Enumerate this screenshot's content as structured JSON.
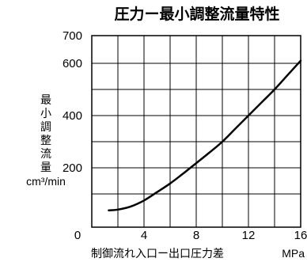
{
  "chart_data": {
    "type": "line",
    "title": "圧力ー最小調整流量特性",
    "xlabel": "制御流れ入口ー出口圧力差",
    "xunit": "MPa",
    "ylabel": "最小調整流量",
    "yunit": "cm³/min",
    "xlim": [
      0,
      16
    ],
    "ylim": [
      0,
      700
    ],
    "x_ticks": [
      0,
      4,
      8,
      12,
      16
    ],
    "x_tick_labels": [
      "0",
      "4",
      "8",
      "12",
      "16"
    ],
    "y_ticks": [
      200,
      400,
      600,
      700
    ],
    "y_tick_labels": [
      "200",
      "400",
      "600",
      "700"
    ],
    "grid": true,
    "series": [
      {
        "x": [
          1.3,
          2,
          3,
          4,
          5,
          6,
          7,
          8,
          9,
          10,
          11,
          12,
          13,
          14,
          15,
          16
        ],
        "values": [
          37,
          40,
          52,
          75,
          107,
          140,
          178,
          218,
          258,
          300,
          350,
          400,
          450,
          500,
          555,
          610
        ]
      }
    ],
    "line_color": "#000000"
  }
}
